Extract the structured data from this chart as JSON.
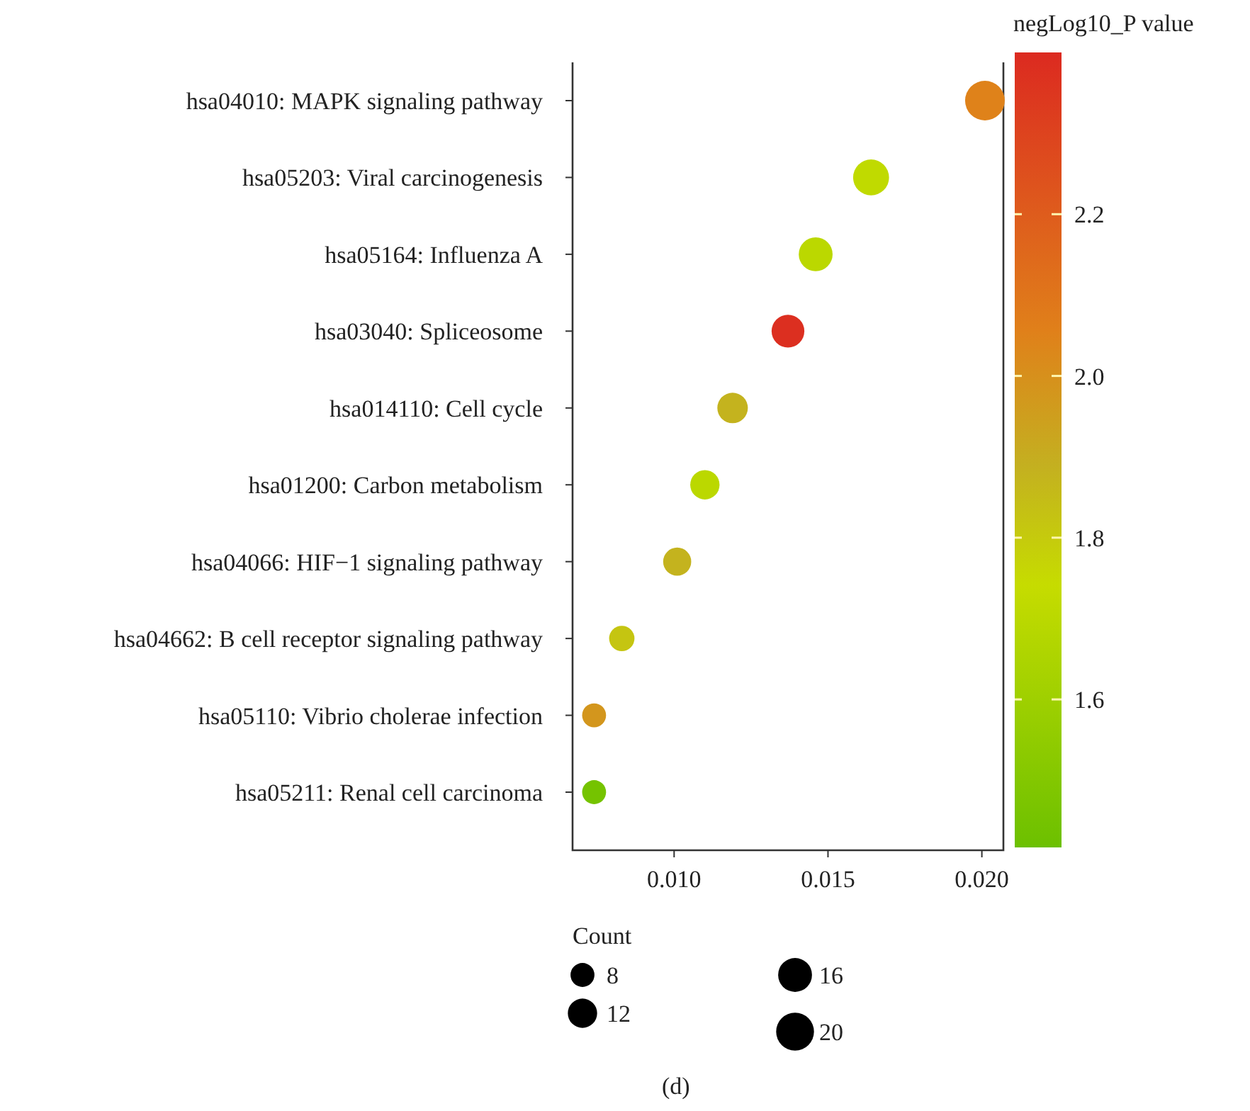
{
  "chart_data": {
    "type": "bubble",
    "categories": [
      "hsa04010: MAPK signaling pathway",
      "hsa05203: Viral carcinogenesis",
      "hsa05164: Influenza A",
      "hsa03040: Spliceosome",
      "hsa014110: Cell cycle",
      "hsa01200: Carbon metabolism",
      "hsa04066: HIF−1 signaling pathway",
      "hsa04662: B cell receptor signaling pathway",
      "hsa05110: Vibrio cholerae infection",
      "hsa05211: Renal cell carcinoma"
    ],
    "orientation": "horizontal",
    "values": [
      0.0201,
      0.0164,
      0.0146,
      0.0137,
      0.0119,
      0.011,
      0.0101,
      0.0083,
      0.0074,
      0.0074
    ],
    "sizes": [
      22,
      18,
      16,
      15,
      13,
      12,
      11,
      9,
      8,
      8
    ],
    "cvalues": [
      2.05,
      1.72,
      1.7,
      2.38,
      1.88,
      1.7,
      1.88,
      1.82,
      1.98,
      1.45
    ],
    "size_legend": [
      8,
      12,
      16,
      20
    ],
    "legend_title": "Count",
    "clabel": "negLog10_P value",
    "clim": [
      1.417,
      2.4
    ],
    "cticks": [
      1.6,
      1.8,
      {
        "value": 2.0,
        "label": "2.0"
      },
      2.2
    ],
    "xlim": [
      0.0067,
      0.0207
    ],
    "xticks": [
      {
        "value": 0.01,
        "label": "0.010"
      },
      {
        "value": 0.015,
        "label": "0.015"
      },
      {
        "value": 0.02,
        "label": "0.020"
      }
    ],
    "grid": false,
    "annotations": [
      "(d)"
    ]
  }
}
